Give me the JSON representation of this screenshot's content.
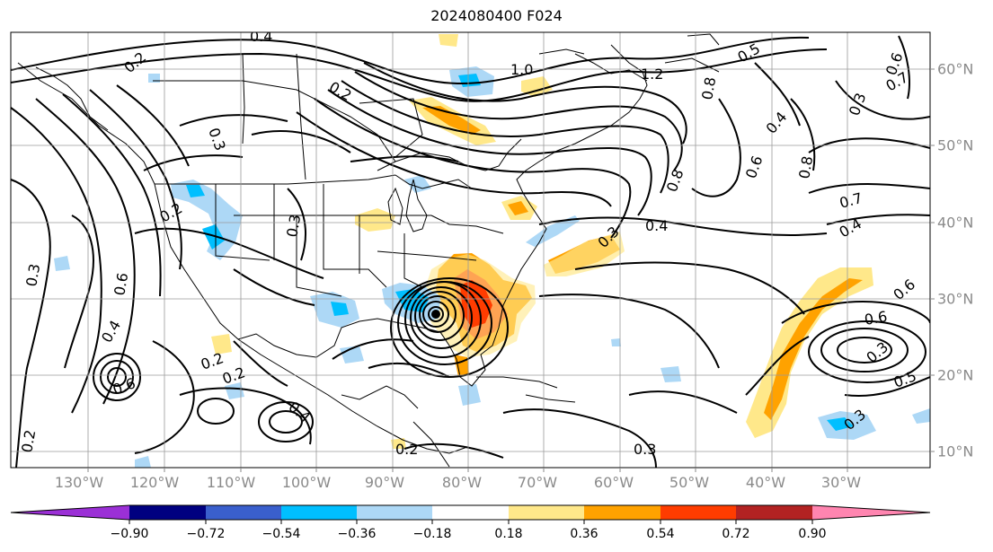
{
  "title": "2024080400 F024",
  "lon_labels": [
    "130°W",
    "120°W",
    "110°W",
    "100°W",
    "90°W",
    "80°W",
    "70°W",
    "60°W",
    "50°W",
    "40°W",
    "30°W"
  ],
  "lat_labels": [
    "60°N",
    "50°N",
    "40°N",
    "30°N",
    "20°N",
    "10°N"
  ],
  "colorbar": {
    "ticks": [
      "−0.90",
      "−0.72",
      "−0.54",
      "−0.36",
      "−0.18",
      "0.18",
      "0.36",
      "0.54",
      "0.72",
      "0.90"
    ],
    "colors": [
      "#9b30d6",
      "#000080",
      "#3a5fcd",
      "#00bfff",
      "#add8f6",
      "#ffffff",
      "#ffe88a",
      "#ffa200",
      "#ff3c00",
      "#b22222",
      "#ff85b0"
    ]
  },
  "contour_labels": [
    "0.4",
    "0.2",
    "1.0",
    "1.2",
    "0.3",
    "0.8",
    "0.5",
    "0.6",
    "0.7",
    "0.2",
    "0.3",
    "0.4",
    "0.6",
    "0.8",
    "0.8",
    "0.4",
    "0.2",
    "0.3",
    "0.6",
    "0.3",
    "0.4",
    "0.3",
    "0.7",
    "0.6",
    "0.5",
    "0.3",
    "0.6",
    "0.4",
    "0.2",
    "0.2",
    "0.2",
    "0.3",
    "0.6",
    "0.4",
    "0.3",
    "0.2"
  ],
  "colors": {
    "contour": "#000000",
    "coast": "#000000",
    "grid": "#9a9a9a",
    "tick": "#8a8a8a"
  }
}
